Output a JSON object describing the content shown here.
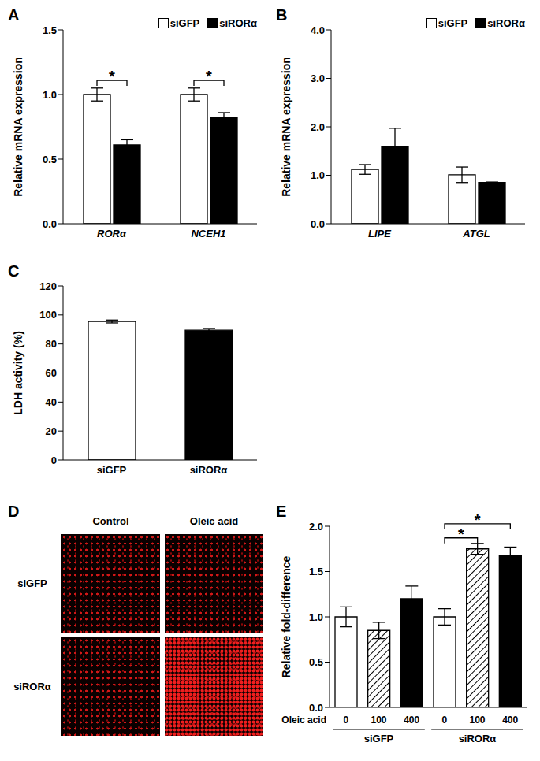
{
  "chart_data": [
    {
      "type": "bar",
      "title": "A",
      "categories": [
        "RORα",
        "NCEH1"
      ],
      "series": [
        {
          "name": "siGFP",
          "color": "#ffffff",
          "values": [
            1.0,
            1.0
          ],
          "errors": [
            0.05,
            0.05
          ]
        },
        {
          "name": "siRORα",
          "color": "#000000",
          "values": [
            0.61,
            0.82
          ],
          "errors": [
            0.04,
            0.04
          ]
        }
      ],
      "y_label": "Relative mRNA expression",
      "ylim": [
        0,
        1.5
      ],
      "yticks": [
        {
          "value": 0,
          "label": "0.0"
        },
        {
          "value": 0.5,
          "label": "0.5"
        },
        {
          "value": 1,
          "label": "1.0"
        },
        {
          "value": 1.5,
          "label": "1.5"
        }
      ],
      "legend": "upper right",
      "annotations": [
        {
          "text": "*",
          "category": "RORα"
        },
        {
          "text": "*",
          "category": "NCEH1"
        }
      ]
    },
    {
      "type": "bar",
      "title": "B",
      "categories": [
        "LIPE",
        "ATGL"
      ],
      "series": [
        {
          "name": "siGFP",
          "color": "#ffffff",
          "values": [
            1.12,
            1.01
          ],
          "errors": [
            0.1,
            0.16
          ]
        },
        {
          "name": "siRORα",
          "color": "#000000",
          "values": [
            1.6,
            0.85
          ],
          "errors": [
            0.37,
            0.01
          ]
        }
      ],
      "y_label": "Relative mRNA expression",
      "ylim": [
        0,
        4
      ],
      "yticks": [
        {
          "value": 0,
          "label": "0.0"
        },
        {
          "value": 1,
          "label": "1.0"
        },
        {
          "value": 2,
          "label": "2.0"
        },
        {
          "value": 3,
          "label": "3.0"
        },
        {
          "value": 4,
          "label": "4.0"
        }
      ],
      "legend": "upper right"
    },
    {
      "type": "bar",
      "title": "C",
      "categories": [
        "siGFP",
        "siRORα"
      ],
      "values": [
        95.5,
        89.5
      ],
      "errors": [
        1.0,
        1.2
      ],
      "colors": [
        "#ffffff",
        "#000000"
      ],
      "y_label": "LDH activity (%)",
      "ylim": [
        0,
        120
      ],
      "yticks": [
        0,
        20,
        40,
        60,
        80,
        100,
        120
      ]
    },
    {
      "type": "image",
      "title": "D",
      "columns": [
        "Control",
        "Oleic acid"
      ],
      "rows": [
        "siGFP",
        "siRORα"
      ]
    },
    {
      "type": "bar",
      "title": "E",
      "categories": [
        "0",
        "100",
        "400"
      ],
      "groups": [
        {
          "name": "siGFP",
          "values": [
            1.0,
            0.85,
            1.2
          ],
          "errors": [
            0.11,
            0.09,
            0.14
          ]
        },
        {
          "name": "siRORα",
          "values": [
            1.0,
            1.75,
            1.68
          ],
          "errors": [
            0.09,
            0.06,
            0.09
          ]
        }
      ],
      "colors": [
        "#ffffff",
        "hatch",
        "#000000"
      ],
      "x_label": "Oleic acid",
      "y_label": "Relative fold-difference",
      "ylim": [
        0,
        2
      ],
      "yticks": [
        {
          "value": 0,
          "label": "0.0"
        },
        {
          "value": 0.5,
          "label": "0.5"
        },
        {
          "value": 1,
          "label": "1.0"
        },
        {
          "value": 1.5,
          "label": "1.5"
        },
        {
          "value": 2,
          "label": "2.0"
        }
      ],
      "annotations": [
        {
          "text": "*",
          "group": "siRORα",
          "from": "0",
          "to": "100"
        },
        {
          "text": "*",
          "group": "siRORα",
          "from": "0",
          "to": "400"
        }
      ]
    }
  ]
}
